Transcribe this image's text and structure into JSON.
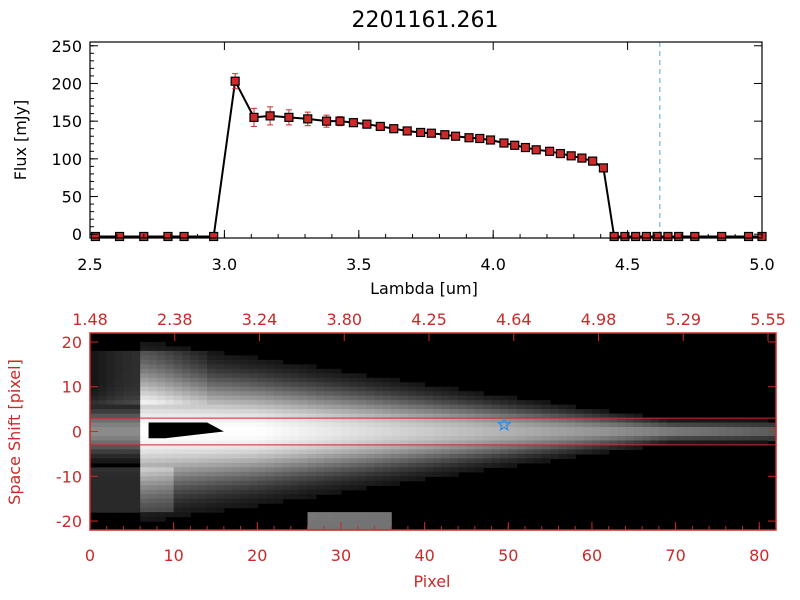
{
  "chart_data": [
    {
      "type": "line",
      "title": "2201161.261",
      "xlabel": "Lambda [um]",
      "ylabel": "Flux [mJy]",
      "xlim": [
        2.5,
        5.0
      ],
      "ylim": [
        -5,
        255
      ],
      "xticks": [
        "2.5",
        "3.0",
        "3.5",
        "4.0",
        "4.5",
        "5.0"
      ],
      "xtick_values": [
        2.5,
        3.0,
        3.5,
        4.0,
        4.5,
        5.0
      ],
      "yticks": [
        "0",
        "50",
        "100",
        "150",
        "200",
        "250"
      ],
      "ytick_values": [
        0,
        50,
        100,
        150,
        200,
        250
      ],
      "marker_color": "#cc2a2a",
      "line_color": "#000000",
      "errorbar_color": "#cc2a2a",
      "vline": {
        "x": 4.62,
        "color": "#5aa6e0",
        "style": "dashed"
      },
      "x": [
        2.52,
        2.61,
        2.7,
        2.79,
        2.85,
        2.96,
        3.04,
        3.11,
        3.17,
        3.24,
        3.31,
        3.38,
        3.43,
        3.48,
        3.53,
        3.58,
        3.63,
        3.68,
        3.73,
        3.77,
        3.82,
        3.86,
        3.91,
        3.95,
        3.99,
        4.04,
        4.08,
        4.12,
        4.16,
        4.21,
        4.25,
        4.29,
        4.33,
        4.37,
        4.41,
        4.45,
        4.49,
        4.53,
        4.57,
        4.61,
        4.65,
        4.69,
        4.75,
        4.85,
        4.95,
        5.0
      ],
      "y": [
        -3,
        -3,
        -3,
        -3,
        -3,
        -3,
        203,
        155,
        157,
        155,
        153,
        150,
        150,
        148,
        146,
        143,
        140,
        137,
        135,
        134,
        132,
        130,
        128,
        127,
        125,
        121,
        118,
        115,
        112,
        110,
        107,
        104,
        101,
        97,
        88,
        -3,
        -3,
        -3,
        -3,
        -3,
        -3,
        -3,
        -3,
        -3,
        -3,
        -3
      ],
      "yerr": [
        0,
        0,
        0,
        0,
        0,
        0,
        10,
        12,
        12,
        10,
        9,
        8,
        6,
        5,
        4,
        4,
        4,
        4,
        3,
        3,
        3,
        3,
        3,
        3,
        3,
        3,
        3,
        3,
        3,
        3,
        3,
        3,
        3,
        3,
        3,
        0,
        0,
        0,
        0,
        0,
        0,
        0,
        0,
        0,
        0,
        0
      ]
    },
    {
      "type": "heatmap",
      "xlabel": "Pixel",
      "ylabel": "Space Shift [pixel]",
      "xlim": [
        0,
        82
      ],
      "ylim": [
        -22,
        22
      ],
      "xticks": [
        "0",
        "10",
        "20",
        "30",
        "40",
        "50",
        "60",
        "70",
        "80"
      ],
      "xtick_values": [
        0,
        10,
        20,
        30,
        40,
        50,
        60,
        70,
        80
      ],
      "yticks": [
        "-20",
        "-10",
        "0",
        "10",
        "20"
      ],
      "ytick_values": [
        -20,
        -10,
        0,
        10,
        20
      ],
      "top_xticks": [
        "1.48",
        "2.38",
        "3.24",
        "3.80",
        "4.25",
        "4.64",
        "4.98",
        "5.29",
        "5.55"
      ],
      "axis_color": "#cc2a2a",
      "aperture_lines": [
        3.0,
        -3.0
      ],
      "aperture_color": "#cc2a2a",
      "star_marker": {
        "x": 49.5,
        "y": 1.5,
        "color": "#3a8de0"
      },
      "colormap": "grayscale"
    }
  ]
}
